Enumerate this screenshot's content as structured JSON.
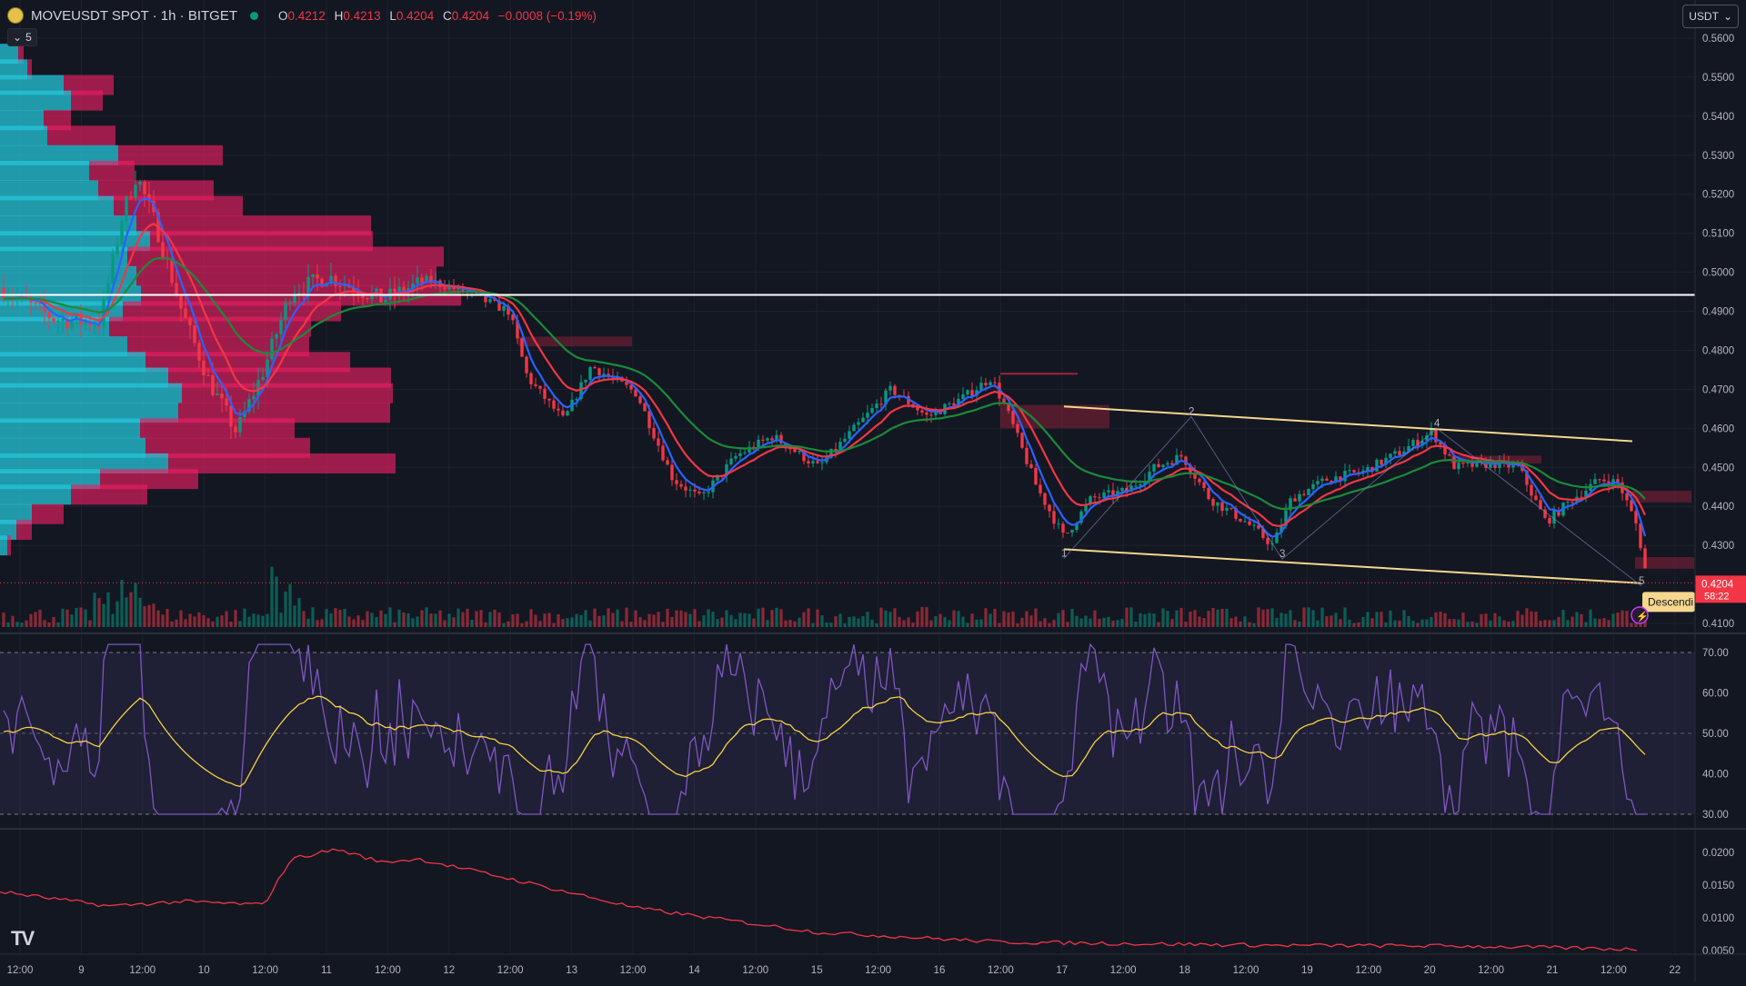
{
  "header": {
    "symbol": "MOVEUSDT SPOT · 1h · BITGET",
    "ohlc": [
      {
        "key": "O",
        "value": "0.4212"
      },
      {
        "key": "H",
        "value": "0.4213"
      },
      {
        "key": "L",
        "value": "0.4204"
      },
      {
        "key": "C",
        "value": "0.4204"
      }
    ],
    "change": "−0.0008 (−0.19%)",
    "indicator_collapse": "5",
    "currency_button": "USDT"
  },
  "colors": {
    "background": "#131722",
    "up": "#089981",
    "down": "#f23645",
    "volume_profile_up": "#26c6da",
    "volume_profile_down": "#e91e63",
    "ema_fast": "#2962ff",
    "ema_mid": "#f23645",
    "ema_slow": "#1b8a3a",
    "channel": "#f5d78e",
    "rsi": "#7e57c2",
    "rsi_ma": "#f5d142"
  },
  "price_axis": {
    "labels": [
      "0.5600",
      "0.5500",
      "0.5400",
      "0.5300",
      "0.5200",
      "0.5100",
      "0.5000",
      "0.4900",
      "0.4800",
      "0.4700",
      "0.4600",
      "0.4500",
      "0.4400",
      "0.4300",
      "0.4100"
    ]
  },
  "last_price": {
    "value": "0.4204",
    "countdown": "58:22"
  },
  "pattern_label": "Descendi",
  "channel_points": [
    "1",
    "2",
    "3",
    "4",
    "5"
  ],
  "rsi_axis": {
    "labels": [
      "70.00",
      "60.00",
      "50.00",
      "40.00",
      "30.00"
    ]
  },
  "third_axis": {
    "labels": [
      "0.0200",
      "0.0150",
      "0.0100",
      "0.0050"
    ]
  },
  "time_axis": {
    "labels": [
      "12:00",
      "9",
      "12:00",
      "10",
      "12:00",
      "11",
      "12:00",
      "12",
      "12:00",
      "13",
      "12:00",
      "14",
      "12:00",
      "15",
      "12:00",
      "16",
      "12:00",
      "17",
      "12:00",
      "18",
      "12:00",
      "19",
      "12:00",
      "20",
      "12:00",
      "21",
      "12:00",
      "22"
    ]
  },
  "brand_logo": "TV",
  "chart_data": {
    "type": "candlestick",
    "price_range": [
      0.405,
      0.565
    ],
    "horizontal_level": 0.4942,
    "channel": {
      "upper": [
        0.4656,
        0.4567
      ],
      "lower": [
        0.429,
        0.4203
      ]
    },
    "rsi_range": [
      30,
      70
    ],
    "third_range": [
      0.0045,
      0.0235
    ]
  }
}
